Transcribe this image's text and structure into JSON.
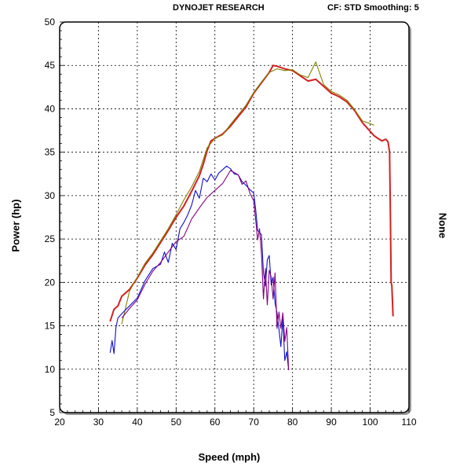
{
  "header": {
    "brand": "DYNOJET RESEARCH",
    "settings": "CF: STD  Smoothing: 5"
  },
  "chart_data": {
    "type": "line",
    "title": "",
    "xlabel": "Speed (mph)",
    "ylabel": "Power (hp)",
    "y2label": "None",
    "xlim": [
      20,
      110
    ],
    "ylim": [
      5,
      50
    ],
    "xticks": [
      20,
      30,
      40,
      50,
      60,
      70,
      80,
      90,
      100,
      110
    ],
    "yticks": [
      5,
      10,
      15,
      20,
      25,
      30,
      35,
      40,
      45,
      50
    ],
    "grid": true,
    "series": [
      {
        "color": "#d42020",
        "x": [
          33,
          34,
          35,
          36,
          37,
          38,
          40,
          42,
          44,
          46,
          48,
          50,
          52,
          54,
          56,
          57,
          58,
          59,
          60,
          62,
          64,
          66,
          68,
          70,
          72,
          74,
          75,
          76,
          78,
          80,
          82,
          84,
          86,
          88,
          90,
          92,
          94,
          96,
          98,
          100,
          101,
          102,
          103,
          104,
          104.6,
          105,
          105.2,
          105.4,
          105.6,
          105.9
        ],
        "y": [
          15.5,
          16.9,
          17.3,
          18.4,
          18.8,
          19.2,
          20.5,
          22.0,
          23.2,
          24.6,
          26.0,
          27.5,
          28.8,
          30.5,
          32.3,
          33.6,
          35.2,
          36.3,
          36.6,
          37.1,
          38.0,
          39.1,
          40.2,
          41.8,
          43.0,
          44.2,
          45.0,
          44.9,
          44.6,
          44.4,
          43.8,
          43.2,
          43.4,
          42.6,
          41.8,
          41.4,
          40.8,
          39.8,
          38.4,
          37.4,
          36.9,
          36.6,
          36.3,
          36.5,
          36.2,
          35.0,
          28.0,
          20.0,
          19.6,
          16.1
        ]
      },
      {
        "color": "#808000",
        "x": [
          36,
          38,
          40,
          42,
          44,
          46,
          48,
          50,
          52,
          54,
          56,
          58,
          60,
          62,
          64,
          66,
          68,
          70,
          72,
          74,
          76,
          78,
          80,
          82,
          84,
          86,
          88,
          90,
          92,
          94,
          96,
          98,
          100,
          101
        ],
        "y": [
          15.2,
          19.0,
          20.6,
          22.2,
          23.4,
          24.8,
          26.2,
          27.8,
          29.5,
          31.0,
          32.8,
          35.5,
          36.6,
          37.0,
          38.2,
          39.3,
          40.4,
          41.9,
          43.1,
          44.2,
          44.6,
          44.4,
          44.5,
          43.9,
          43.6,
          45.4,
          42.8,
          42.0,
          41.6,
          41.0,
          39.9,
          38.6,
          38.3,
          38.1
        ]
      },
      {
        "color": "#1010c8",
        "x": [
          33,
          33.5,
          34,
          34.5,
          35,
          36,
          38,
          40,
          42,
          44,
          46,
          47,
          48,
          49,
          50,
          51,
          52,
          53,
          54,
          55,
          56,
          57,
          58,
          59,
          60,
          61,
          62,
          63,
          64,
          65,
          66,
          67,
          68,
          69,
          70,
          70.5,
          71,
          72,
          72.5,
          73,
          73.5,
          74,
          74.5,
          75,
          75.5,
          76,
          76.5,
          77,
          77.5,
          78,
          78.5,
          79
        ],
        "y": [
          11.9,
          13.3,
          11.8,
          14.8,
          15.9,
          16.4,
          17.3,
          18.2,
          20.2,
          21.6,
          22.1,
          23.5,
          22.3,
          24.5,
          23.8,
          26.2,
          26.9,
          27.8,
          28.9,
          30.6,
          29.7,
          32.0,
          31.6,
          32.5,
          31.8,
          32.6,
          33.0,
          33.4,
          33.1,
          32.5,
          32.4,
          31.6,
          31.2,
          30.7,
          30.3,
          28.4,
          26.0,
          25.5,
          21.1,
          19.6,
          22.6,
          23.1,
          19.7,
          20.6,
          17.6,
          16.5,
          14.6,
          12.6,
          15.9,
          11.0,
          12.0,
          9.9
        ]
      },
      {
        "color": "#800080",
        "x": [
          36,
          38,
          40,
          42,
          44,
          46,
          48,
          50,
          52,
          54,
          56,
          58,
          60,
          62,
          64,
          66,
          67,
          68,
          69,
          70,
          70.5,
          71,
          71.5,
          72,
          72.5,
          73,
          73.5,
          74,
          74.5,
          75,
          75.5,
          76,
          76.5,
          77,
          77.5,
          78,
          78.5,
          79
        ],
        "y": [
          15.9,
          17.0,
          18.0,
          19.8,
          21.3,
          22.3,
          23.5,
          24.7,
          25.3,
          27.3,
          28.6,
          29.8,
          30.6,
          31.4,
          32.9,
          32.4,
          31.3,
          31.7,
          30.3,
          29.4,
          27.2,
          24.9,
          26.2,
          23.3,
          18.1,
          21.6,
          17.4,
          21.4,
          20.6,
          18.1,
          21.1,
          14.7,
          16.6,
          14.7,
          16.5,
          13.2,
          14.8,
          9.9
        ]
      }
    ]
  }
}
